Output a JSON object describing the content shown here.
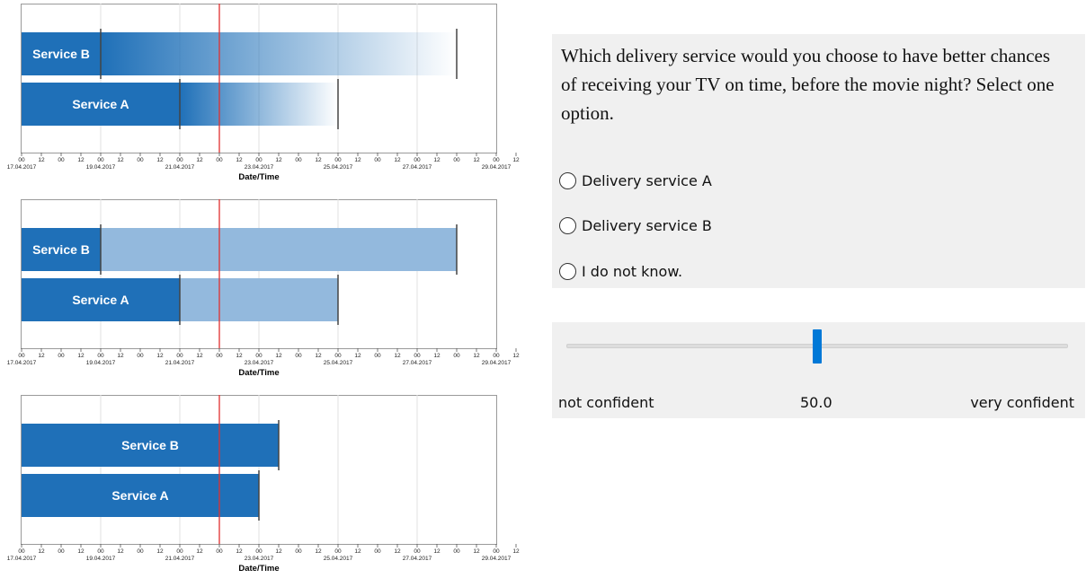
{
  "charts": {
    "ticks": [
      "00",
      "12",
      "00",
      "12",
      "00",
      "12",
      "00",
      "12",
      "00",
      "12",
      "00",
      "12",
      "00",
      "12",
      "00",
      "12",
      "00",
      "12",
      "00",
      "12",
      "00",
      "12",
      "00",
      "12",
      "00",
      "12"
    ],
    "date_labels": [
      "17.04.2017",
      "19.04.2017",
      "21.04.2017",
      "23.04.2017",
      "25.04.2017",
      "27.04.2017",
      "29.04.2017"
    ],
    "xlabel": "Date/Time",
    "now_line_color": "#e03030",
    "bar_color": "#1f70b8",
    "light_bar_color": "#93b9dd"
  },
  "chart_data": [
    {
      "type": "bar",
      "style": "gradient",
      "xlabel": "Date/Time",
      "xlim": [
        "17.04.2017 00:00",
        "29.04.2017 00:00"
      ],
      "now": "22.04.2017 00:00",
      "series": [
        {
          "name": "Service B",
          "solid_start": "17.04.2017 00:00",
          "solid_end": "19.04.2017 00:00",
          "range_end": "28.04.2017 00:00"
        },
        {
          "name": "Service A",
          "solid_start": "17.04.2017 00:00",
          "solid_end": "21.04.2017 00:00",
          "range_end": "25.04.2017 00:00"
        }
      ]
    },
    {
      "type": "bar",
      "style": "uniform",
      "xlabel": "Date/Time",
      "xlim": [
        "17.04.2017 00:00",
        "29.04.2017 00:00"
      ],
      "now": "22.04.2017 00:00",
      "series": [
        {
          "name": "Service B",
          "solid_start": "17.04.2017 00:00",
          "solid_end": "19.04.2017 00:00",
          "range_end": "28.04.2017 00:00"
        },
        {
          "name": "Service A",
          "solid_start": "17.04.2017 00:00",
          "solid_end": "21.04.2017 00:00",
          "range_end": "25.04.2017 00:00"
        }
      ]
    },
    {
      "type": "bar",
      "style": "point",
      "xlabel": "Date/Time",
      "xlim": [
        "17.04.2017 00:00",
        "29.04.2017 00:00"
      ],
      "now": "22.04.2017 00:00",
      "series": [
        {
          "name": "Service B",
          "solid_start": "17.04.2017 00:00",
          "solid_end": "23.04.2017 12:00"
        },
        {
          "name": "Service A",
          "solid_start": "17.04.2017 00:00",
          "solid_end": "23.04.2017 00:00"
        }
      ]
    }
  ],
  "question": {
    "text": "Which delivery service would you choose to have better chances of receiving your TV on time, before the movie night? Select one option.",
    "options": [
      {
        "label": "Delivery service A"
      },
      {
        "label": "Delivery service B"
      },
      {
        "label": "I do not know."
      }
    ]
  },
  "confidence": {
    "min_label": "not confident",
    "value_label": "50.0",
    "max_label": "very confident",
    "value": 50.0,
    "min": 0,
    "max": 100,
    "accent": "#0078d7"
  }
}
